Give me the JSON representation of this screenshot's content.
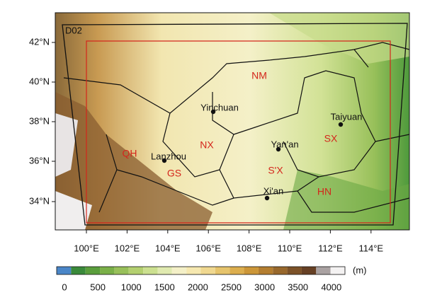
{
  "map": {
    "domain_label": "D02",
    "lat_labels": [
      "42°N",
      "40°N",
      "38°N",
      "36°N",
      "34°N"
    ],
    "lon_labels": [
      "100°E",
      "102°E",
      "104°E",
      "106°E",
      "108°E",
      "110°E",
      "112°E",
      "114°E"
    ],
    "cities": [
      "Yinchuan",
      "Lanzhou",
      "Yan'an",
      "Taiyuan",
      "Xi'an"
    ],
    "regions": [
      "NM",
      "NX",
      "QH",
      "GS",
      "S'X",
      "SX",
      "HN"
    ]
  },
  "colorbar": {
    "unit": "(m)",
    "ticks": [
      0,
      500,
      1000,
      1500,
      2000,
      2500,
      3000,
      3500,
      4000
    ],
    "colors": [
      "#4a86c8",
      "#3a8a3a",
      "#5a9e3c",
      "#7ab048",
      "#98c05a",
      "#b4d070",
      "#cce090",
      "#e0eab0",
      "#f4f0c8",
      "#f6e8b0",
      "#f0d890",
      "#e6c46c",
      "#dcae4e",
      "#cc9638",
      "#b47e30",
      "#98682c",
      "#7c5228",
      "#664024",
      "#aaa2a2",
      "#f4f2f2"
    ]
  }
}
